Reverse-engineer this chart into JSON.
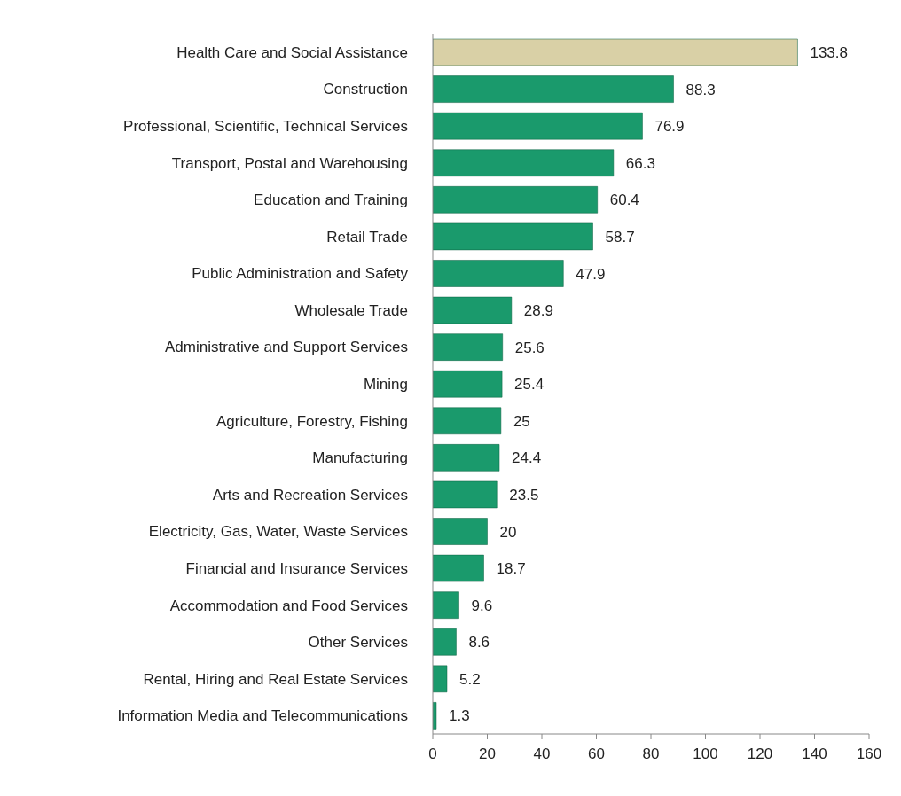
{
  "chart_data": {
    "type": "bar",
    "orientation": "horizontal",
    "categories": [
      "Health Care and Social Assistance",
      "Construction",
      "Professional, Scientific, Technical Services",
      "Transport, Postal and Warehousing",
      "Education and Training",
      "Retail Trade",
      "Public Administration and Safety",
      "Wholesale Trade",
      "Administrative and Support Services",
      "Mining",
      "Agriculture, Forestry, Fishing",
      "Manufacturing",
      "Arts and Recreation Services",
      "Electricity, Gas, Water, Waste Services",
      "Financial and Insurance Services",
      "Accommodation and Food Services",
      "Other Services",
      "Rental, Hiring and Real Estate Services",
      "Information Media and Telecommunications"
    ],
    "values": [
      133.8,
      88.3,
      76.9,
      66.3,
      60.4,
      58.7,
      47.9,
      28.9,
      25.6,
      25.4,
      25,
      24.4,
      23.5,
      20,
      18.7,
      9.6,
      8.6,
      5.2,
      1.3
    ],
    "colors": [
      "#d9d0a6",
      "#1a9a6c",
      "#1a9a6c",
      "#1a9a6c",
      "#1a9a6c",
      "#1a9a6c",
      "#1a9a6c",
      "#1a9a6c",
      "#1a9a6c",
      "#1a9a6c",
      "#1a9a6c",
      "#1a9a6c",
      "#1a9a6c",
      "#1a9a6c",
      "#1a9a6c",
      "#1a9a6c",
      "#1a9a6c",
      "#1a9a6c",
      "#1a9a6c"
    ],
    "xlim": [
      0,
      160
    ],
    "xticks": [
      0,
      20,
      40,
      60,
      80,
      100,
      120,
      140,
      160
    ],
    "data_labels": true,
    "grid": false
  }
}
